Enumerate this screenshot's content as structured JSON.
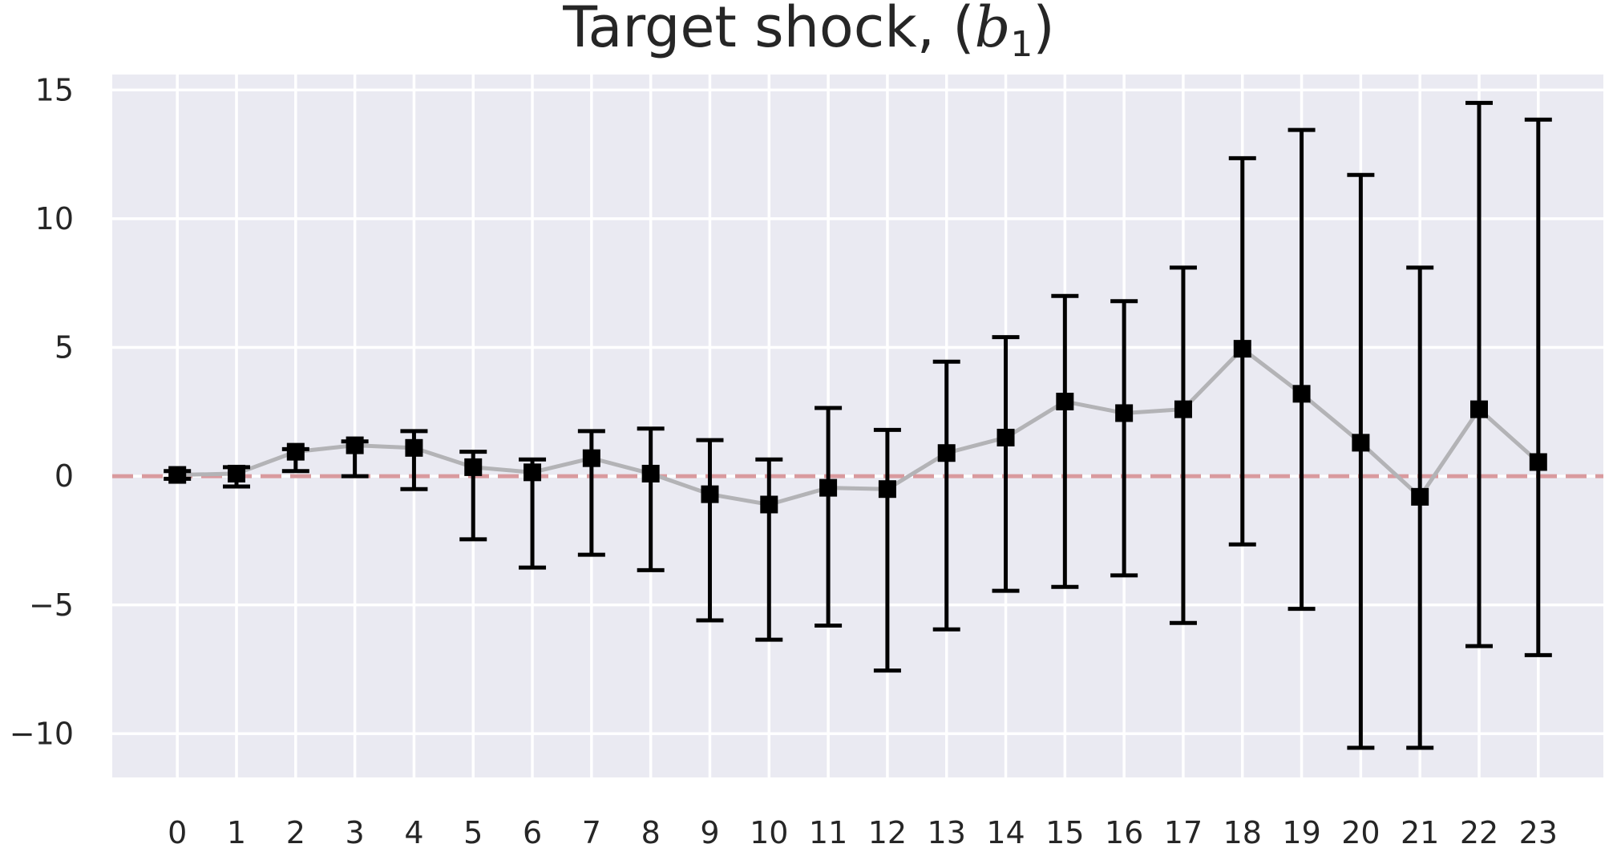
{
  "chart_data": {
    "type": "scatter",
    "title": "Target shock, (",
    "title_symbol": "b",
    "title_subscript": "1",
    "title_close": ")",
    "xlabel": "",
    "ylabel": "",
    "x": [
      0,
      1,
      2,
      3,
      4,
      5,
      6,
      7,
      8,
      9,
      10,
      11,
      12,
      13,
      14,
      15,
      16,
      17,
      18,
      19,
      20,
      21,
      22,
      23
    ],
    "y": [
      0.05,
      0.1,
      0.95,
      1.2,
      1.1,
      0.35,
      0.15,
      0.7,
      0.1,
      -0.7,
      -1.1,
      -0.45,
      -0.5,
      0.9,
      1.5,
      2.9,
      2.45,
      2.6,
      4.95,
      3.2,
      1.3,
      -0.8,
      2.6,
      0.55
    ],
    "y_lower": [
      -0.1,
      -0.4,
      0.2,
      0.0,
      -0.5,
      -2.45,
      -3.55,
      -3.05,
      -3.65,
      -5.6,
      -6.35,
      -5.8,
      -7.55,
      -5.95,
      -4.45,
      -4.3,
      -3.85,
      -5.7,
      -2.65,
      -5.15,
      -10.55,
      -10.55,
      -6.6,
      -6.95
    ],
    "y_upper": [
      0.2,
      0.35,
      1.05,
      1.35,
      1.75,
      0.95,
      0.65,
      1.75,
      1.85,
      1.4,
      0.65,
      2.65,
      1.8,
      4.45,
      5.4,
      7.0,
      6.8,
      8.1,
      12.35,
      13.45,
      11.7,
      8.1,
      14.5,
      13.85
    ],
    "xlim": [
      -1.1,
      24.1
    ],
    "ylim": [
      -11.7,
      15.6
    ],
    "yticks": [
      -10,
      -5,
      0,
      5,
      10,
      15
    ],
    "ytick_labels": [
      "−10",
      "−5",
      "0",
      "5",
      "10",
      "15"
    ],
    "xtick_labels": [
      "0",
      "1",
      "2",
      "3",
      "4",
      "5",
      "6",
      "7",
      "8",
      "9",
      "10",
      "11",
      "12",
      "13",
      "14",
      "15",
      "16",
      "17",
      "18",
      "19",
      "20",
      "21",
      "22",
      "23"
    ],
    "reference_line_y": 0,
    "grid": true,
    "colors": {
      "plot_background": "#eaeaf2",
      "grid": "#ffffff",
      "markers": "#000000",
      "error_bars": "#000000",
      "trend_line": "#b3b3b6",
      "reference_line": "#d99a9e"
    }
  }
}
